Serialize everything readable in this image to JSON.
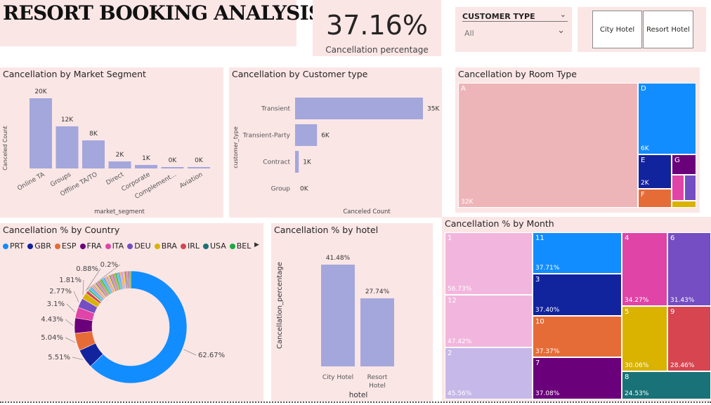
{
  "dashboard": {
    "title": "RESORT BOOKING ANALYSIS"
  },
  "kpi": {
    "value": "37.16%",
    "label": "Cancellation percentage"
  },
  "slicer": {
    "title": "CUSTOMER TYPE",
    "selected": "All"
  },
  "hotel_buttons": {
    "city": "City Hotel",
    "resort": "Resort Hotel"
  },
  "chart_data": [
    {
      "id": "market_segment",
      "type": "bar",
      "title": "Cancellation by Market Segment",
      "xlabel": "market_segment",
      "ylabel": "Canceled Count",
      "categories": [
        "Online TA",
        "Groups",
        "Offline TA/TO",
        "Direct",
        "Corporate",
        "Complement...",
        "Aviation"
      ],
      "values": [
        20000,
        12000,
        8000,
        2000,
        1000,
        0,
        0
      ],
      "data_labels": [
        "20K",
        "12K",
        "8K",
        "2K",
        "1K",
        "0K",
        "0K"
      ],
      "color": "#a3a7dc"
    },
    {
      "id": "customer_type",
      "type": "bar",
      "orientation": "horizontal",
      "title": "Cancellation by Customer type",
      "xlabel": "Canceled Count",
      "ylabel": "customer_type",
      "categories": [
        "Transient",
        "Transient-Party",
        "Contract",
        "Group"
      ],
      "values": [
        35000,
        6000,
        1000,
        0
      ],
      "data_labels": [
        "35K",
        "6K",
        "1K",
        "0K"
      ],
      "color": "#a3a7dc"
    },
    {
      "id": "room_type",
      "type": "treemap",
      "title": "Cancellation by Room Type",
      "items": [
        {
          "name": "A",
          "label": "32K",
          "color": "#eeb5b8"
        },
        {
          "name": "D",
          "label": "6K",
          "color": "#118dff"
        },
        {
          "name": "E",
          "label": "2K",
          "color": "#12239e"
        },
        {
          "name": "F",
          "label": "",
          "color": "#e66c37"
        },
        {
          "name": "G",
          "label": "",
          "color": "#6b007b"
        },
        {
          "name": "",
          "label": "",
          "color": "#e044a7"
        },
        {
          "name": "",
          "label": "",
          "color": "#744ec2"
        },
        {
          "name": "",
          "label": "",
          "color": "#d9b300"
        }
      ]
    },
    {
      "id": "country",
      "type": "pie",
      "donut": true,
      "title": "Cancellation % by Country",
      "legend": [
        {
          "name": "PRT",
          "color": "#118dff"
        },
        {
          "name": "GBR",
          "color": "#12239e"
        },
        {
          "name": "ESP",
          "color": "#e66c37"
        },
        {
          "name": "FRA",
          "color": "#6b007b"
        },
        {
          "name": "ITA",
          "color": "#e044a7"
        },
        {
          "name": "DEU",
          "color": "#744ec2"
        },
        {
          "name": "BRA",
          "color": "#d9b300"
        },
        {
          "name": "IRL",
          "color": "#d64550"
        },
        {
          "name": "USA",
          "color": "#197278"
        },
        {
          "name": "BEL",
          "color": "#1aab40"
        }
      ],
      "slices": [
        {
          "value": 62.67,
          "label": "62.67%",
          "color": "#118dff"
        },
        {
          "value": 5.51,
          "label": "5.51%",
          "color": "#12239e"
        },
        {
          "value": 5.04,
          "label": "5.04%",
          "color": "#e66c37"
        },
        {
          "value": 4.43,
          "label": "4.43%",
          "color": "#6b007b"
        },
        {
          "value": 3.1,
          "label": "3.1%",
          "color": "#e044a7"
        },
        {
          "value": 2.77,
          "label": "2.77%",
          "color": "#744ec2"
        },
        {
          "value": 1.81,
          "label": "1.81%",
          "color": "#d9b300"
        },
        {
          "value": 0.88,
          "label": "0.88%",
          "color": "#d64550"
        },
        {
          "value": 0.2,
          "label": "0.2%",
          "color": "#197278"
        }
      ],
      "other_small_slices": 30,
      "other_total": 13.59
    },
    {
      "id": "hotel",
      "type": "bar",
      "title": "Cancellation % by hotel",
      "xlabel": "hotel",
      "ylabel": "Cancellation_percentage",
      "categories": [
        "City Hotel",
        "Resort Hotel"
      ],
      "values": [
        41.48,
        27.74
      ],
      "data_labels": [
        "41.48%",
        "27.74%"
      ],
      "color": "#a3a7dc"
    },
    {
      "id": "month",
      "type": "treemap",
      "title": "Cancellation % by Month",
      "items": [
        {
          "name": "1",
          "label": "56.73%",
          "color": "#f2b6de"
        },
        {
          "name": "12",
          "label": "47.42%",
          "color": "#f2b6de"
        },
        {
          "name": "2",
          "label": "45.56%",
          "color": "#c6b8e8"
        },
        {
          "name": "11",
          "label": "37.71%",
          "color": "#118dff"
        },
        {
          "name": "3",
          "label": "37.40%",
          "color": "#12239e"
        },
        {
          "name": "10",
          "label": "37.37%",
          "color": "#e66c37"
        },
        {
          "name": "7",
          "label": "37.08%",
          "color": "#6b007b"
        },
        {
          "name": "4",
          "label": "34.27%",
          "color": "#e044a7"
        },
        {
          "name": "6",
          "label": "31.43%",
          "color": "#744ec2"
        },
        {
          "name": "5",
          "label": "30.06%",
          "color": "#d9b300"
        },
        {
          "name": "9",
          "label": "28.46%",
          "color": "#d64550"
        },
        {
          "name": "8",
          "label": "24.53%",
          "color": "#197278"
        }
      ]
    }
  ]
}
